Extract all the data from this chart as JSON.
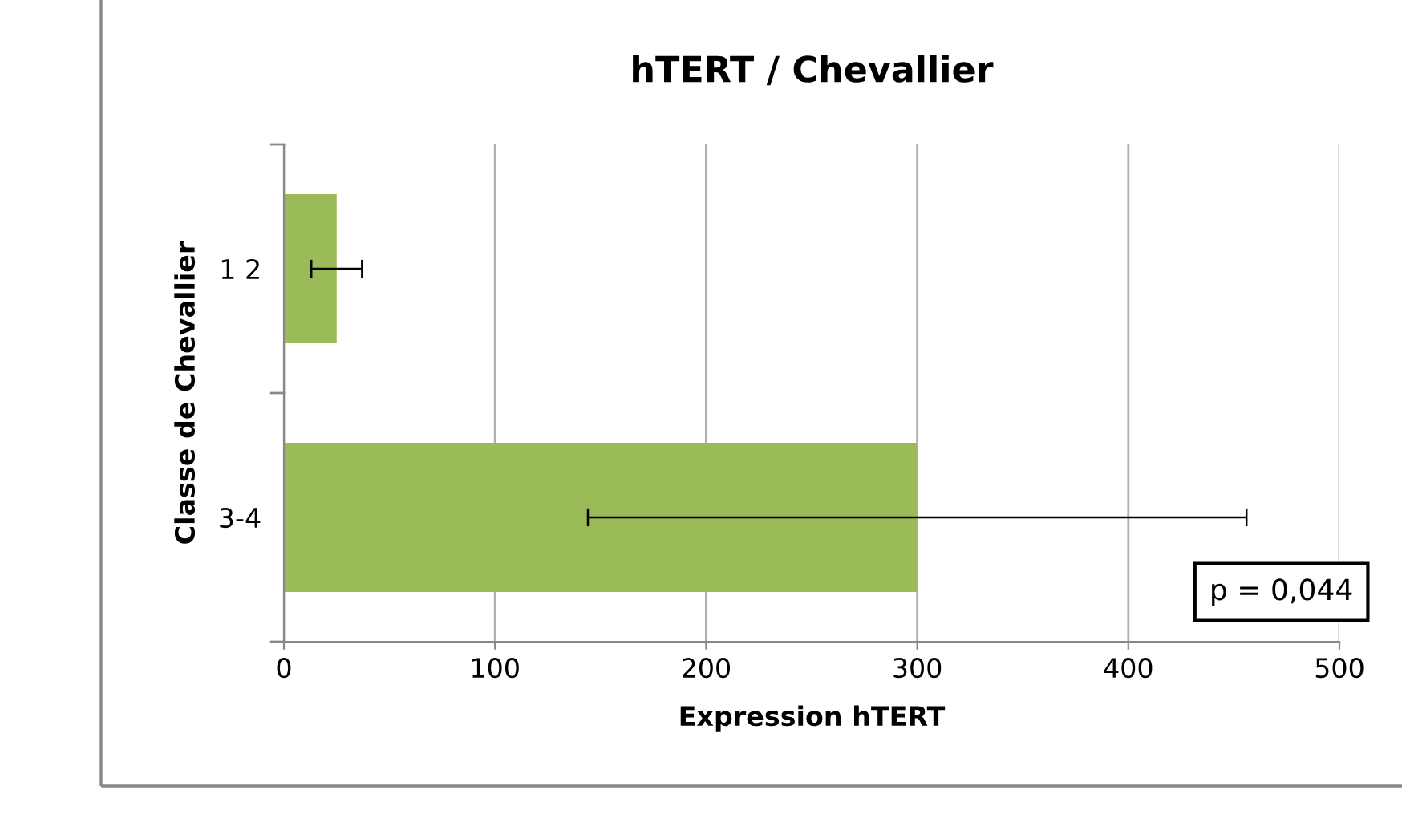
{
  "chart_data": {
    "type": "bar",
    "orientation": "horizontal",
    "title": "hTERT / Chevallier",
    "xlabel": "Expression hTERT",
    "ylabel": "Classe de Chevallier",
    "categories": [
      "1 2",
      "3-4"
    ],
    "series": [
      {
        "color": "#9bbb59",
        "values": [
          25,
          300
        ],
        "errors": [
          12,
          156
        ]
      }
    ],
    "xlim": [
      0,
      500
    ],
    "xticks": [
      0,
      100,
      200,
      300,
      400,
      500
    ],
    "grid": "x",
    "annotations": [
      "p = 0,044"
    ]
  }
}
